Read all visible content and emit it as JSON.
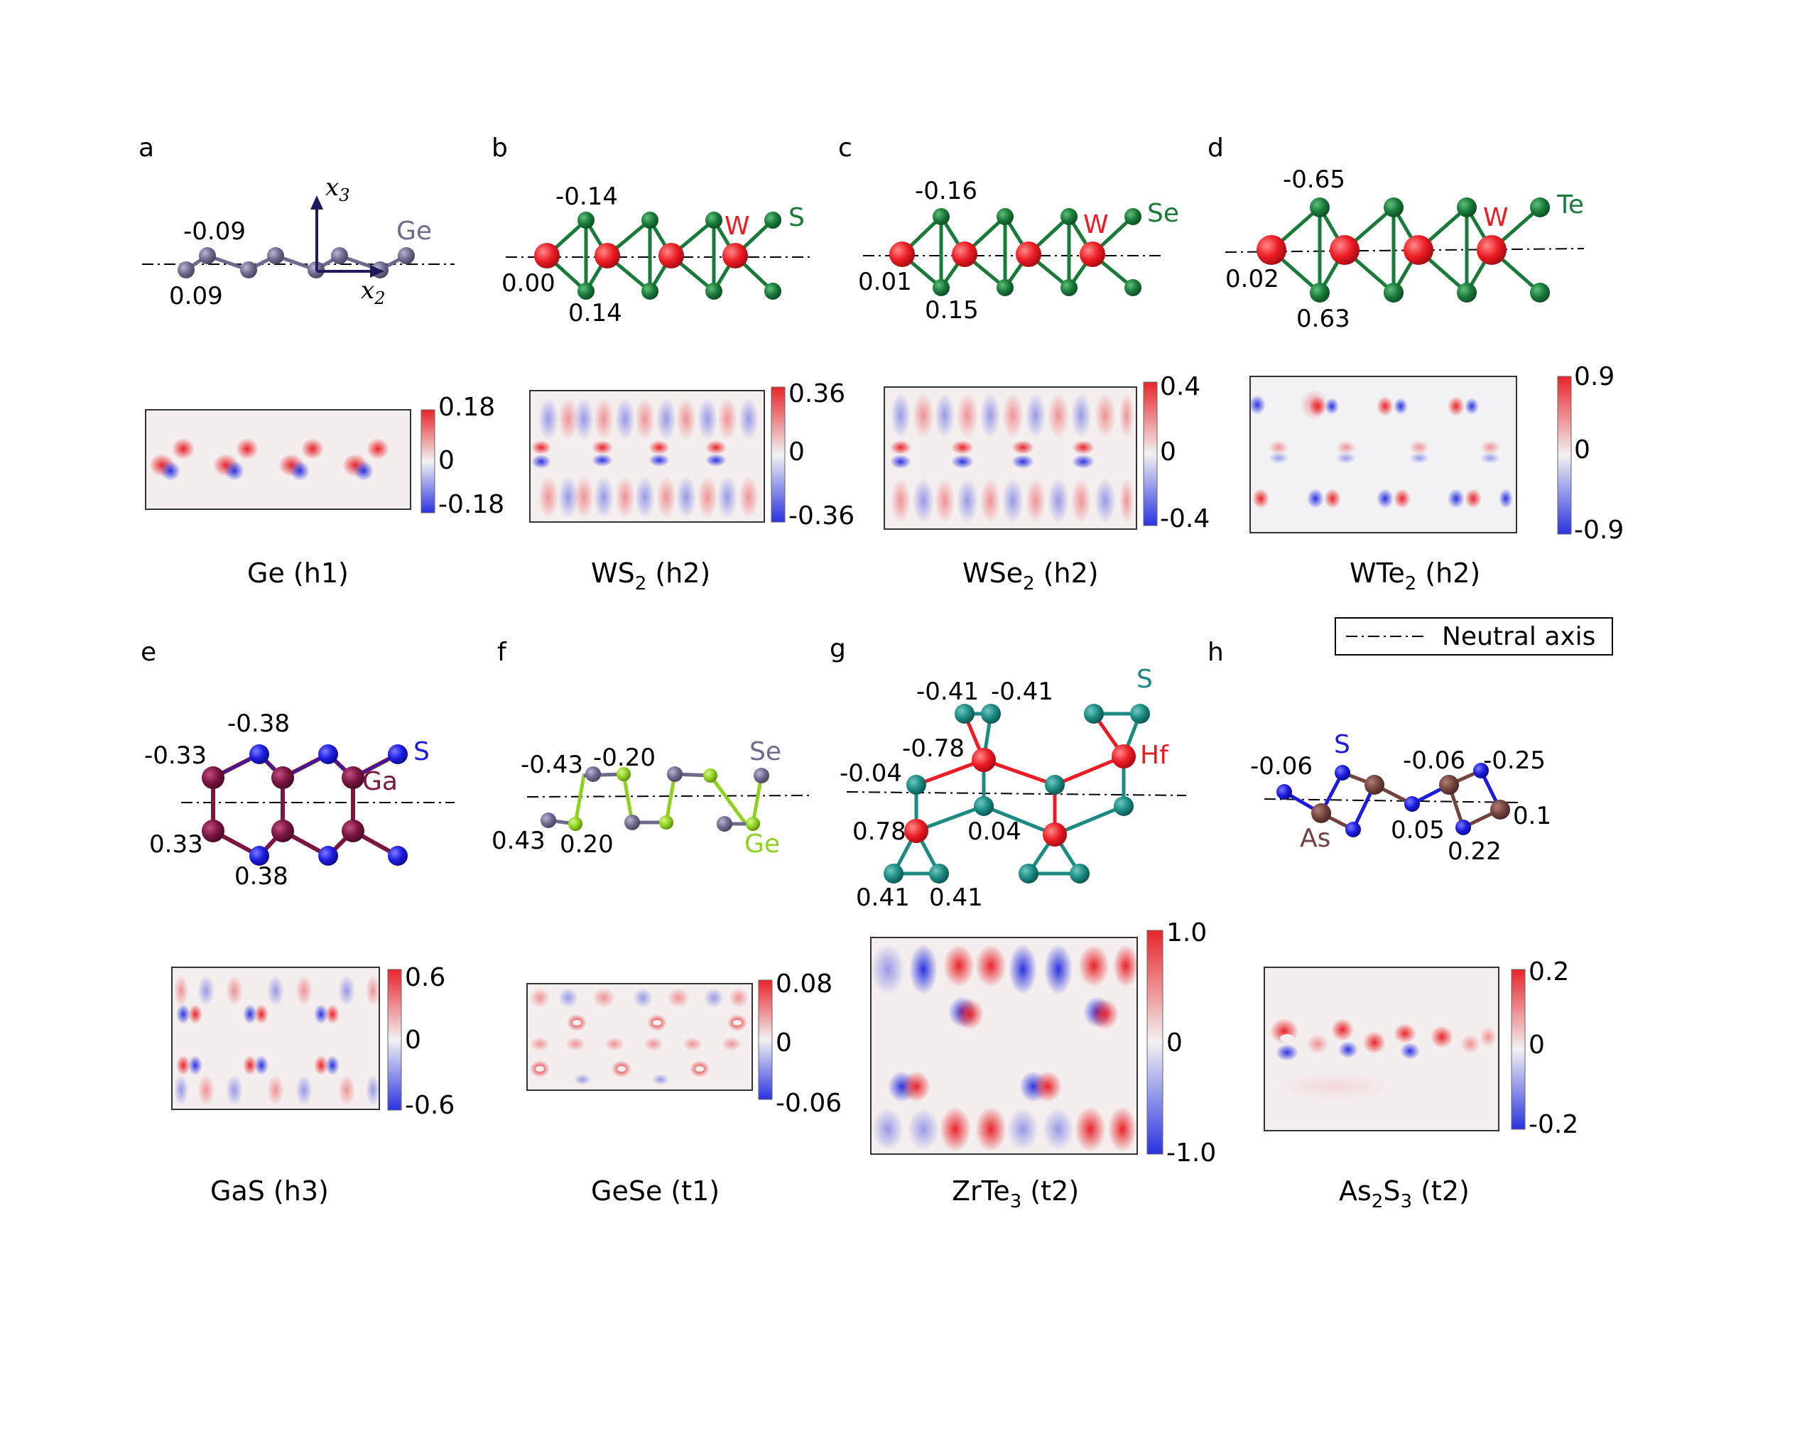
{
  "colors": {
    "ge_atom": "#6e6a8e",
    "w_atom": "#ec1c24",
    "chalcogen_green": "#1a7a3a",
    "ga_atom": "#7a1440",
    "s_blue": "#1c1ce0",
    "ge_lime": "#8ed11f",
    "teal": "#1b8a82",
    "as_brown": "#74433e",
    "map_pos": "#e8242a",
    "map_neg": "#2a33e0",
    "map_mid": "#f2f2f2"
  },
  "legend": {
    "label": "Neutral axis"
  },
  "panels": [
    {
      "letter": "a",
      "caption_main": "Ge (h1)",
      "caption_sub": "",
      "caption_tail": "",
      "elements": [
        "Ge"
      ],
      "values": [
        "-0.09",
        "0.09"
      ],
      "axes": {
        "x3": "x",
        "x3_sub": "3",
        "x2": "x",
        "x2_sub": "2"
      },
      "colorbar": [
        "0.18",
        "0",
        "-0.18"
      ]
    },
    {
      "letter": "b",
      "caption_main": "WS",
      "caption_sub": "2",
      "caption_tail": " (h2)",
      "elements": [
        "W",
        "S"
      ],
      "values": [
        "-0.14",
        "0.00",
        "0.14"
      ],
      "colorbar": [
        "0.36",
        "0",
        "-0.36"
      ]
    },
    {
      "letter": "c",
      "caption_main": "WSe",
      "caption_sub": "2",
      "caption_tail": " (h2)",
      "elements": [
        "W",
        "Se"
      ],
      "values": [
        "-0.16",
        "0.01",
        "0.15"
      ],
      "colorbar": [
        "0.4",
        "0",
        "-0.4"
      ]
    },
    {
      "letter": "d",
      "caption_main": "WTe",
      "caption_sub": "2",
      "caption_tail": " (h2)",
      "elements": [
        "W",
        "Te"
      ],
      "values": [
        "-0.65",
        "0.02",
        "0.63"
      ],
      "colorbar": [
        "0.9",
        "0",
        "-0.9"
      ]
    },
    {
      "letter": "e",
      "caption_main": "GaS (h3)",
      "caption_sub": "",
      "caption_tail": "",
      "elements": [
        "S",
        "Ga"
      ],
      "values": [
        "-0.38",
        "-0.33",
        "0.33",
        "0.38"
      ],
      "colorbar": [
        "0.6",
        "0",
        "-0.6"
      ]
    },
    {
      "letter": "f",
      "caption_main": "GeSe (t1)",
      "caption_sub": "",
      "caption_tail": "",
      "elements": [
        "Se",
        "Ge"
      ],
      "values": [
        "-0.43",
        "-0.20",
        "0.43",
        "0.20"
      ],
      "colorbar": [
        "0.08",
        "0",
        "-0.06"
      ]
    },
    {
      "letter": "g",
      "caption_main": "ZrTe",
      "caption_sub": "3",
      "caption_tail": " (t2)",
      "elements": [
        "S",
        "Hf"
      ],
      "values": [
        "-0.41",
        "-0.41",
        "-0.78",
        "-0.04",
        "0.78",
        "0.04",
        "0.41",
        "0.41"
      ],
      "colorbar": [
        "1.0",
        "0",
        "-1.0"
      ]
    },
    {
      "letter": "h",
      "caption_main": "As",
      "caption_sub": "2",
      "caption_mid": "S",
      "caption_sub2": "3",
      "caption_tail": " (t2)",
      "elements": [
        "S",
        "As"
      ],
      "values": [
        "-0.06",
        "-0.06",
        "-0.25",
        "0.05",
        "0.1",
        "0.22"
      ],
      "colorbar": [
        "0.2",
        "0",
        "-0.2"
      ]
    }
  ]
}
